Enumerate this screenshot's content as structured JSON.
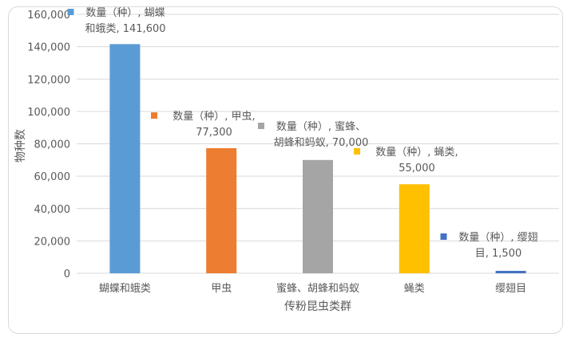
{
  "chart_data": {
    "type": "bar",
    "title": "",
    "xlabel": "传粉昆虫类群",
    "ylabel": "物种数",
    "ylim": [
      0,
      160000
    ],
    "yticks": [
      0,
      20000,
      40000,
      60000,
      80000,
      100000,
      120000,
      140000,
      160000
    ],
    "grid": true,
    "legend": "none",
    "categories": [
      "蝴蝶和蛾类",
      "甲虫",
      "蜜蜂、胡蜂和蚂蚁",
      "蝇类",
      "缨翅目"
    ],
    "series": [
      {
        "name": "数量（种）",
        "values": [
          141600,
          77300,
          70000,
          55000,
          1500
        ],
        "colors": [
          "#5B9BD5",
          "#ED7D31",
          "#A5A5A5",
          "#FFC000",
          "#4472C4"
        ]
      }
    ],
    "data_labels": [
      [
        "数量（种）, 蝴蝶",
        "和蛾类, 141,600"
      ],
      [
        "数量（种）, 甲虫,",
        "77,300"
      ],
      [
        "数量（种）, 蜜蜂、",
        "胡蜂和蚂蚁, 70,000"
      ],
      [
        "数量（种）, 蝇类,",
        "55,000"
      ],
      [
        "数量（种）, 缨翅",
        "目, 1,500"
      ]
    ]
  }
}
